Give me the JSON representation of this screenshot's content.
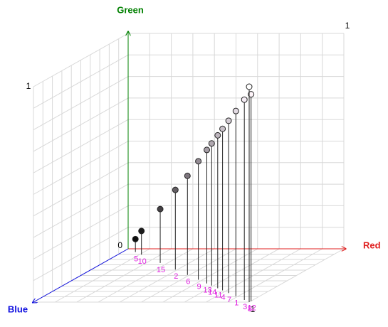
{
  "chart_data": {
    "type": "scatter3d",
    "x_label": "Red",
    "y_label": "Green",
    "z_label": "Blue",
    "x_color": "#e02020",
    "y_color": "#008000",
    "z_color": "#1010e0",
    "xlim": [
      0,
      1
    ],
    "ylim": [
      0,
      1
    ],
    "zlim": [
      0,
      1
    ],
    "origin_tick": 0,
    "xticks": [
      1
    ],
    "yticks": [
      1
    ],
    "zticks": [
      1
    ],
    "grid": true,
    "points": [
      {
        "label": 5,
        "x": 0.06,
        "y": 0.06,
        "z": 0.06
      },
      {
        "label": 10,
        "x": 0.11,
        "y": 0.11,
        "z": 0.11
      },
      {
        "label": 15,
        "x": 0.265,
        "y": 0.25,
        "z": 0.265
      },
      {
        "label": 2,
        "x": 0.39,
        "y": 0.37,
        "z": 0.39
      },
      {
        "label": 6,
        "x": 0.49,
        "y": 0.46,
        "z": 0.49
      },
      {
        "label": 9,
        "x": 0.58,
        "y": 0.55,
        "z": 0.58
      },
      {
        "label": 13,
        "x": 0.65,
        "y": 0.62,
        "z": 0.65
      },
      {
        "label": 14,
        "x": 0.69,
        "y": 0.66,
        "z": 0.69
      },
      {
        "label": 11,
        "x": 0.74,
        "y": 0.71,
        "z": 0.74
      },
      {
        "label": 4,
        "x": 0.78,
        "y": 0.75,
        "z": 0.78
      },
      {
        "label": 7,
        "x": 0.83,
        "y": 0.8,
        "z": 0.83
      },
      {
        "label": 1,
        "x": 0.89,
        "y": 0.86,
        "z": 0.89
      },
      {
        "label": 3,
        "x": 0.96,
        "y": 0.93,
        "z": 0.96
      },
      {
        "label": 12,
        "x": 1.0,
        "y": 0.96,
        "z": 0.98
      },
      {
        "label": 8,
        "x": 1.0,
        "y": 1.0,
        "z": 1.0
      }
    ]
  }
}
